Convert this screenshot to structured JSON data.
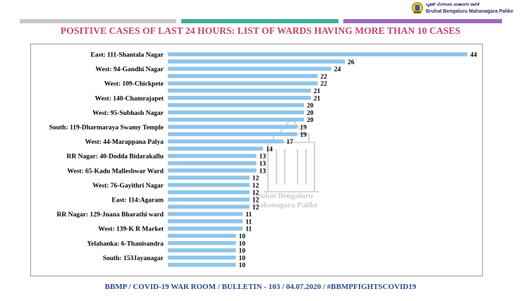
{
  "header": {
    "logo_kannada": "ಬೃಹತ್ ಬೆಂಗಳೂರು ಮಹಾನಗರ ಪಾಲಿಕೆ",
    "logo_english": "Bruhat Bengaluru Mahanagara Palike",
    "bar_colors": [
      "#c9c9c9",
      "#3aaea0",
      "#9b6bc6"
    ]
  },
  "watermark": {
    "line1": "Bruhat Bengaluru",
    "line2": "Mahanagara Palike"
  },
  "chart_data": {
    "type": "bar",
    "orientation": "horizontal",
    "title": "POSITIVE CASES OF LAST 24 HOURS: LIST OF WARDS HAVING MORE THAN 10 CASES",
    "bar_color": "#8ec5ea",
    "grid": false,
    "legend": "none",
    "xlim": [
      0,
      44
    ],
    "categories": [
      "East: 111-Shantala Nagar",
      "",
      "West: 94-Gandhi Nagar",
      "",
      "West: 109-Chickpete",
      "",
      "West: 140-Chamrajapet",
      "",
      "West: 95-Subhash Nagar",
      "",
      "South: 119-Dharmaraya Swamy Temple",
      "",
      "West: 44-Marappana Palya",
      "",
      "RR Nagar: 40-Dodda Bidarakallu",
      "",
      "West: 65-Kadu Malleshwar Ward",
      "",
      "West: 76-Gayithri Nagar",
      "",
      "East: 114:Agaram",
      "",
      "RR Nagar: 129-Jnana Bharathi ward",
      "",
      "West: 139-K R Market",
      "",
      "Yelahanka: 6-Thanisandra",
      "",
      "South: 153Jayanagar",
      ""
    ],
    "values": [
      44,
      26,
      24,
      22,
      22,
      21,
      21,
      20,
      20,
      20,
      19,
      19,
      17,
      14,
      13,
      13,
      13,
      12,
      12,
      12,
      12,
      12,
      11,
      11,
      11,
      10,
      10,
      10,
      10,
      10
    ]
  },
  "footer": {
    "text": "BBMP / COVID-19 WAR ROOM / BULLETIN - 103 / 04.07.2020 / #BBMPFIGHTSCOVID19"
  }
}
